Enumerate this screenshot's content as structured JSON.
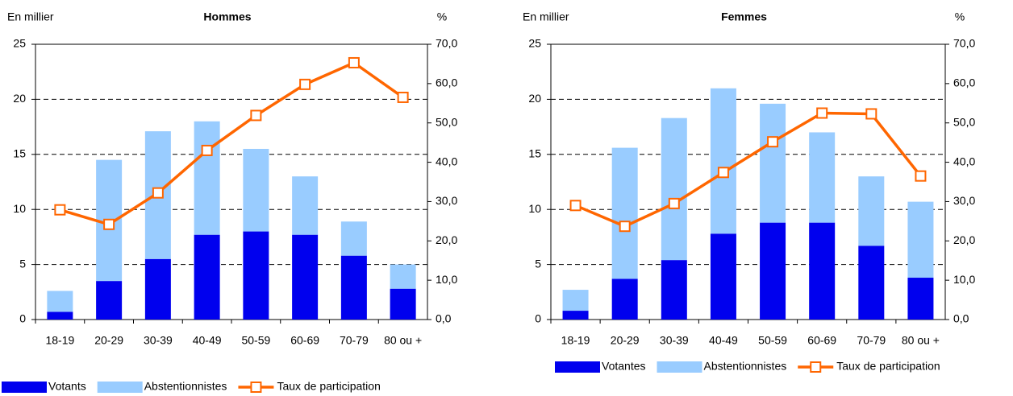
{
  "chart_data": [
    {
      "type": "bar",
      "title": "Hommes",
      "y_label": "En millier",
      "y2_label": "%",
      "categories": [
        "18-19",
        "20-29",
        "30-39",
        "40-49",
        "50-59",
        "60-69",
        "70-79",
        "80 ou +"
      ],
      "stacked": true,
      "series": [
        {
          "name": "Votants",
          "color": "#0000ee",
          "values": [
            0.7,
            3.5,
            5.5,
            7.7,
            8.0,
            7.7,
            5.8,
            2.8
          ]
        },
        {
          "name": "Abstentionnistes",
          "color": "#99ccff",
          "values": [
            1.9,
            11.0,
            11.6,
            10.3,
            7.5,
            5.3,
            3.1,
            2.2
          ]
        },
        {
          "name": "Taux de participation",
          "color": "#ff6600",
          "type": "line",
          "axis": "y2",
          "values": [
            27.9,
            24.2,
            32.2,
            43.0,
            51.9,
            59.8,
            65.3,
            56.5
          ]
        }
      ],
      "ylim": [
        0,
        25
      ],
      "yticks": [
        0,
        5,
        10,
        15,
        20,
        25
      ],
      "y2lim": [
        0,
        70
      ],
      "y2ticks": [
        {
          "value": 0,
          "label": "0,0"
        },
        {
          "value": 10,
          "label": "10,0"
        },
        {
          "value": 20,
          "label": "20,0"
        },
        {
          "value": 30,
          "label": "30,0"
        },
        {
          "value": 40,
          "label": "40,0"
        },
        {
          "value": 50,
          "label": "50,0"
        },
        {
          "value": 60,
          "label": "60,0"
        },
        {
          "value": 70,
          "label": "70,0"
        }
      ],
      "grid": true
    },
    {
      "type": "bar",
      "title": "Femmes",
      "y_label": "En millier",
      "y2_label": "%",
      "categories": [
        "18-19",
        "20-29",
        "30-39",
        "40-49",
        "50-59",
        "60-69",
        "70-79",
        "80 ou +"
      ],
      "stacked": true,
      "series": [
        {
          "name": "Votantes",
          "color": "#0000ee",
          "values": [
            0.8,
            3.7,
            5.4,
            7.8,
            8.8,
            8.8,
            6.7,
            3.8
          ]
        },
        {
          "name": "Abstentionnistes",
          "color": "#99ccff",
          "values": [
            1.9,
            11.9,
            12.9,
            13.2,
            10.8,
            8.2,
            6.3,
            6.9
          ]
        },
        {
          "name": "Taux de participation",
          "color": "#ff6600",
          "type": "line",
          "axis": "y2",
          "values": [
            29.0,
            23.7,
            29.5,
            37.4,
            45.2,
            52.5,
            52.3,
            36.5
          ]
        }
      ],
      "ylim": [
        0,
        25
      ],
      "yticks": [
        0,
        5,
        10,
        15,
        20,
        25
      ],
      "y2lim": [
        0,
        70
      ],
      "y2ticks": [
        {
          "value": 0,
          "label": "0,0"
        },
        {
          "value": 10,
          "label": "10,0"
        },
        {
          "value": 20,
          "label": "20,0"
        },
        {
          "value": 30,
          "label": "30,0"
        },
        {
          "value": 40,
          "label": "40,0"
        },
        {
          "value": 50,
          "label": "50,0"
        },
        {
          "value": 60,
          "label": "60,0"
        },
        {
          "value": 70,
          "label": "70,0"
        }
      ],
      "grid": true
    }
  ]
}
